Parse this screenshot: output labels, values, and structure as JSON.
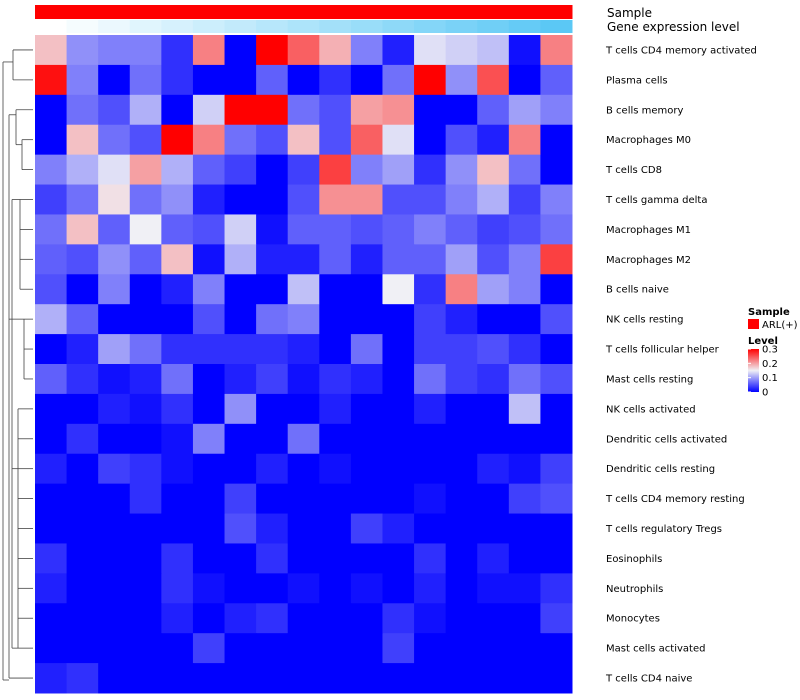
{
  "chart_data": {
    "type": "heatmap",
    "annotations": [
      {
        "name": "Sample",
        "palette": [
          "#ff0000"
        ]
      },
      {
        "name": "Gene expression level",
        "palette": [
          "#ffffff",
          "#5bc8f5"
        ]
      }
    ],
    "rows": [
      "T cells CD4 memory activated",
      "Plasma cells",
      "B cells memory",
      "Macrophages M0",
      "T cells CD8",
      "T cells gamma delta",
      "Macrophages M1",
      "Macrophages M2",
      "B cells naive",
      "NK cells resting",
      "T cells follicular helper",
      "Mast cells resting",
      "NK cells activated",
      "Dendritic cells activated",
      "Dendritic cells resting",
      "T cells CD4 memory resting",
      "T cells regulatory  Tregs",
      "Eosinophils",
      "Neutrophils",
      "Monocytes",
      "Mast cells activated",
      "T cells CD4 naive"
    ],
    "n_columns": 17,
    "values": [
      [
        0.18,
        0.09,
        0.08,
        0.08,
        0.03,
        0.22,
        0.0,
        0.3,
        0.24,
        0.19,
        0.08,
        0.02,
        0.14,
        0.13,
        0.12,
        0.01,
        0.22
      ],
      [
        0.29,
        0.08,
        0.0,
        0.07,
        0.03,
        0.0,
        0.0,
        0.06,
        0.0,
        0.03,
        0.0,
        0.07,
        0.3,
        0.09,
        0.25,
        0.0,
        0.06
      ],
      [
        0.0,
        0.07,
        0.05,
        0.11,
        0.0,
        0.13,
        0.3,
        0.3,
        0.07,
        0.05,
        0.2,
        0.21,
        0.0,
        0.0,
        0.06,
        0.1,
        0.08
      ],
      [
        0.0,
        0.18,
        0.07,
        0.05,
        0.31,
        0.22,
        0.07,
        0.05,
        0.18,
        0.05,
        0.24,
        0.14,
        0.0,
        0.05,
        0.02,
        0.22,
        0.0
      ],
      [
        0.08,
        0.11,
        0.14,
        0.2,
        0.11,
        0.06,
        0.04,
        0.0,
        0.04,
        0.26,
        0.08,
        0.1,
        0.03,
        0.09,
        0.18,
        0.07,
        0.0
      ],
      [
        0.04,
        0.07,
        0.16,
        0.07,
        0.09,
        0.02,
        0.0,
        0.0,
        0.05,
        0.21,
        0.21,
        0.05,
        0.05,
        0.08,
        0.11,
        0.04,
        0.08
      ],
      [
        0.07,
        0.18,
        0.06,
        0.15,
        0.06,
        0.05,
        0.13,
        0.01,
        0.06,
        0.06,
        0.05,
        0.06,
        0.08,
        0.06,
        0.04,
        0.05,
        0.07
      ],
      [
        0.06,
        0.05,
        0.09,
        0.06,
        0.18,
        0.01,
        0.11,
        0.02,
        0.02,
        0.06,
        0.02,
        0.06,
        0.06,
        0.1,
        0.05,
        0.08,
        0.26
      ],
      [
        0.05,
        0.0,
        0.08,
        0.0,
        0.02,
        0.08,
        0.0,
        0.0,
        0.12,
        0.0,
        0.0,
        0.15,
        0.03,
        0.22,
        0.1,
        0.08,
        0.0
      ],
      [
        0.11,
        0.06,
        0.0,
        0.0,
        0.0,
        0.05,
        0.0,
        0.07,
        0.08,
        0.0,
        0.0,
        0.0,
        0.04,
        0.02,
        0.0,
        0.0,
        0.05
      ],
      [
        0.0,
        0.02,
        0.1,
        0.07,
        0.03,
        0.03,
        0.03,
        0.03,
        0.02,
        0.0,
        0.07,
        0.0,
        0.04,
        0.04,
        0.05,
        0.03,
        0.0
      ],
      [
        0.06,
        0.03,
        0.01,
        0.02,
        0.07,
        0.0,
        0.02,
        0.04,
        0.01,
        0.03,
        0.02,
        0.0,
        0.07,
        0.04,
        0.03,
        0.07,
        0.05
      ],
      [
        0.0,
        0.0,
        0.02,
        0.01,
        0.03,
        0.0,
        0.09,
        0.0,
        0.0,
        0.02,
        0.0,
        0.0,
        0.02,
        0.0,
        0.0,
        0.12,
        0.0
      ],
      [
        0.0,
        0.03,
        0.0,
        0.0,
        0.01,
        0.08,
        0.0,
        0.0,
        0.07,
        0.0,
        0.0,
        0.0,
        0.0,
        0.0,
        0.0,
        0.0,
        0.0
      ],
      [
        0.02,
        0.0,
        0.04,
        0.03,
        0.01,
        0.0,
        0.0,
        0.02,
        0.0,
        0.01,
        0.0,
        0.0,
        0.0,
        0.0,
        0.02,
        0.01,
        0.04
      ],
      [
        0.0,
        0.0,
        0.0,
        0.03,
        0.0,
        0.0,
        0.04,
        0.0,
        0.0,
        0.0,
        0.0,
        0.0,
        0.01,
        0.0,
        0.0,
        0.04,
        0.05
      ],
      [
        0.0,
        0.0,
        0.0,
        0.0,
        0.0,
        0.0,
        0.05,
        0.02,
        0.0,
        0.0,
        0.04,
        0.02,
        0.0,
        0.0,
        0.0,
        0.0,
        0.0
      ],
      [
        0.03,
        0.0,
        0.0,
        0.0,
        0.03,
        0.0,
        0.0,
        0.03,
        0.0,
        0.0,
        0.0,
        0.0,
        0.03,
        0.0,
        0.02,
        0.0,
        0.0
      ],
      [
        0.02,
        0.0,
        0.0,
        0.0,
        0.03,
        0.01,
        0.0,
        0.0,
        0.01,
        0.0,
        0.01,
        0.0,
        0.02,
        0.0,
        0.01,
        0.01,
        0.03
      ],
      [
        0.0,
        0.0,
        0.0,
        0.0,
        0.02,
        0.0,
        0.02,
        0.03,
        0.0,
        0.0,
        0.0,
        0.03,
        0.01,
        0.0,
        0.0,
        0.0,
        0.04
      ],
      [
        0.0,
        0.0,
        0.0,
        0.0,
        0.0,
        0.04,
        0.0,
        0.0,
        0.0,
        0.0,
        0.0,
        0.04,
        0.0,
        0.0,
        0.0,
        0.0,
        0.0
      ],
      [
        0.02,
        0.03,
        0.0,
        0.0,
        0.0,
        0.0,
        0.0,
        0.0,
        0.0,
        0.0,
        0.0,
        0.0,
        0.0,
        0.0,
        0.0,
        0.0,
        0.0
      ]
    ],
    "color_scale": {
      "low": "#0000ff",
      "mid": "#f0f0f5",
      "high": "#ff0000",
      "domain": [
        0,
        0.15,
        0.3
      ]
    },
    "legend": {
      "sample_title": "Sample",
      "sample_entry": "ARL(+)",
      "sample_color": "#ff0000",
      "level_title": "Level",
      "level_ticks": [
        "0.3",
        "0.2",
        "0.1",
        "0"
      ],
      "level_tick_values": [
        0.3,
        0.2,
        0.1,
        0
      ],
      "position": "right"
    },
    "dendrogram": "rows, left"
  }
}
